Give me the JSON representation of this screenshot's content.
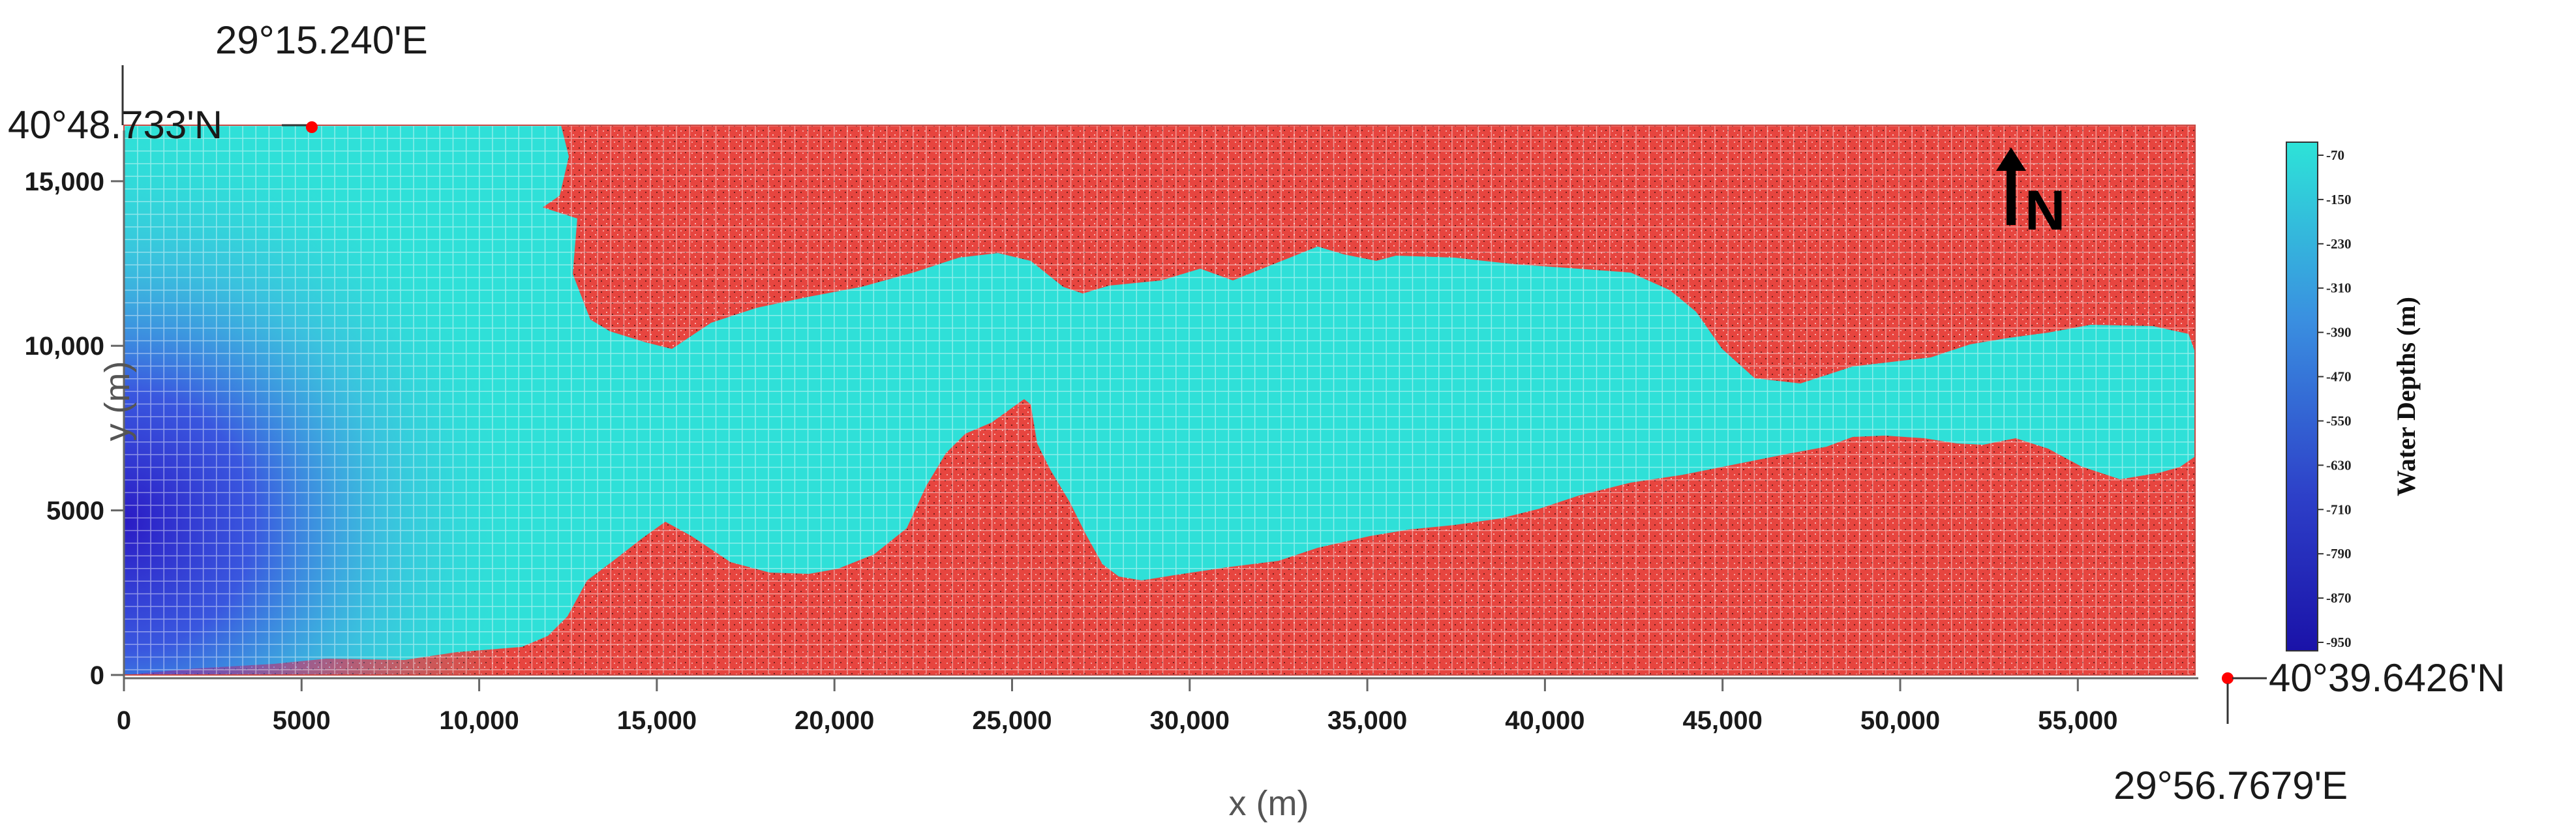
{
  "map": {
    "corner_labels": {
      "top_left_lon": "29°15.240'E",
      "top_left_lat": "40°48.733'N",
      "bottom_right_lat": "40°39.6426'N",
      "bottom_right_lon": "29°56.7679'E"
    },
    "north_arrow_label": "N",
    "axes": {
      "x_label": "x (m)",
      "y_label": "y (m)",
      "x_range": [
        0,
        58300
      ],
      "y_range": [
        0,
        16700
      ],
      "x_ticks": [
        {
          "value": 0,
          "label": "0"
        },
        {
          "value": 5000,
          "label": "5000"
        },
        {
          "value": 10000,
          "label": "10,000"
        },
        {
          "value": 15000,
          "label": "15,000"
        },
        {
          "value": 20000,
          "label": "20,000"
        },
        {
          "value": 25000,
          "label": "25,000"
        },
        {
          "value": 30000,
          "label": "30,000"
        },
        {
          "value": 35000,
          "label": "35,000"
        },
        {
          "value": 40000,
          "label": "40,000"
        },
        {
          "value": 45000,
          "label": "45,000"
        },
        {
          "value": 50000,
          "label": "50,000"
        },
        {
          "value": 55000,
          "label": "55,000"
        }
      ],
      "y_ticks": [
        {
          "value": 0,
          "label": "0"
        },
        {
          "value": 5000,
          "label": "5000"
        },
        {
          "value": 10000,
          "label": "10,000"
        },
        {
          "value": 15000,
          "label": "15,000"
        }
      ]
    },
    "colorbar": {
      "title": "Water Depths (m)",
      "ticks": [
        "-70",
        "-150",
        "-230",
        "-310",
        "-390",
        "-470",
        "-550",
        "-630",
        "-710",
        "-790",
        "-870",
        "-950"
      ],
      "color_shallow": "#2de3d8",
      "color_deep": "#1a12a8"
    },
    "colors": {
      "land": "#e7453f",
      "water": "#2fe0d8",
      "deep_water": "#3a2fd8",
      "corner_marker": "#ff0000"
    }
  }
}
